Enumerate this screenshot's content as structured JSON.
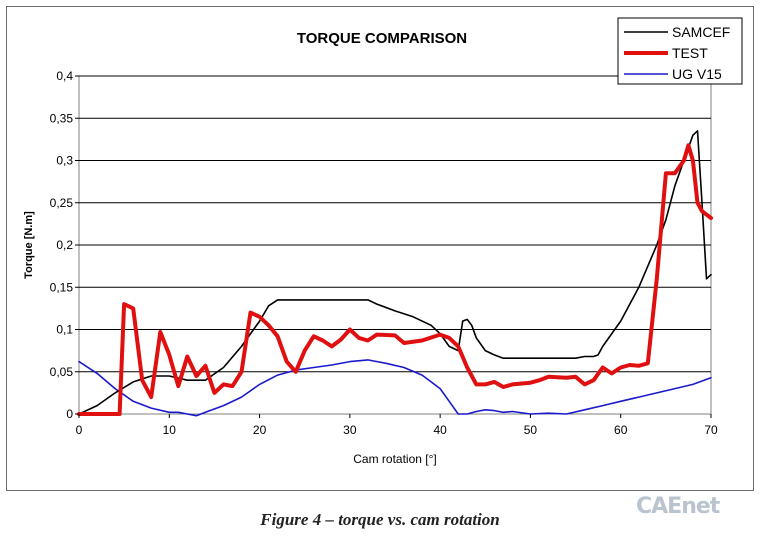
{
  "chart_data": {
    "type": "line",
    "title": "TORQUE COMPARISON",
    "xlabel": "Cam rotation [°]",
    "ylabel": "Torque [N.m]",
    "xlim": [
      0,
      70
    ],
    "ylim": [
      0,
      0.4
    ],
    "xticks": [
      0,
      10,
      20,
      30,
      40,
      50,
      60,
      70
    ],
    "xtick_labels": [
      "0",
      "10",
      "20",
      "30",
      "40",
      "50",
      "60",
      "70"
    ],
    "yticks": [
      0,
      0.05,
      0.1,
      0.15,
      0.2,
      0.25,
      0.3,
      0.35,
      0.4
    ],
    "ytick_labels": [
      "0",
      "0,05",
      "0,1",
      "0,15",
      "0,2",
      "0,25",
      "0,3",
      "0,35",
      "0,4"
    ],
    "grid": "horizontal",
    "legend_position": "top-right",
    "series": [
      {
        "name": "SAMCEF",
        "color": "#000000",
        "width": 1.6,
        "points": [
          [
            0,
            0
          ],
          [
            2,
            0.01
          ],
          [
            4,
            0.025
          ],
          [
            6,
            0.038
          ],
          [
            8,
            0.045
          ],
          [
            10,
            0.045
          ],
          [
            12,
            0.04
          ],
          [
            14,
            0.04
          ],
          [
            16,
            0.055
          ],
          [
            18,
            0.08
          ],
          [
            20,
            0.11
          ],
          [
            21,
            0.128
          ],
          [
            22,
            0.135
          ],
          [
            24,
            0.135
          ],
          [
            26,
            0.135
          ],
          [
            28,
            0.135
          ],
          [
            30,
            0.135
          ],
          [
            32,
            0.135
          ],
          [
            33,
            0.13
          ],
          [
            35,
            0.122
          ],
          [
            37,
            0.115
          ],
          [
            39,
            0.105
          ],
          [
            40,
            0.095
          ],
          [
            41,
            0.08
          ],
          [
            42,
            0.075
          ],
          [
            42.5,
            0.11
          ],
          [
            43,
            0.112
          ],
          [
            43.5,
            0.105
          ],
          [
            44,
            0.09
          ],
          [
            45,
            0.075
          ],
          [
            46,
            0.07
          ],
          [
            47,
            0.066
          ],
          [
            50,
            0.066
          ],
          [
            53,
            0.066
          ],
          [
            55,
            0.066
          ],
          [
            56,
            0.068
          ],
          [
            57,
            0.068
          ],
          [
            57.5,
            0.07
          ],
          [
            58,
            0.08
          ],
          [
            60,
            0.11
          ],
          [
            62,
            0.15
          ],
          [
            64,
            0.2
          ],
          [
            65,
            0.23
          ],
          [
            66,
            0.27
          ],
          [
            67,
            0.3
          ],
          [
            68,
            0.33
          ],
          [
            68.5,
            0.335
          ],
          [
            69,
            0.25
          ],
          [
            69.5,
            0.16
          ],
          [
            70,
            0.165
          ]
        ]
      },
      {
        "name": "TEST",
        "color": "#e01010",
        "width": 4,
        "points": [
          [
            0,
            0
          ],
          [
            4,
            0
          ],
          [
            4.5,
            0
          ],
          [
            5,
            0.13
          ],
          [
            6,
            0.125
          ],
          [
            7,
            0.04
          ],
          [
            8,
            0.02
          ],
          [
            9,
            0.097
          ],
          [
            10,
            0.07
          ],
          [
            11,
            0.033
          ],
          [
            12,
            0.068
          ],
          [
            13,
            0.045
          ],
          [
            14,
            0.057
          ],
          [
            15,
            0.025
          ],
          [
            16,
            0.035
          ],
          [
            17,
            0.033
          ],
          [
            18,
            0.05
          ],
          [
            19,
            0.12
          ],
          [
            20,
            0.115
          ],
          [
            21,
            0.105
          ],
          [
            22,
            0.092
          ],
          [
            23,
            0.062
          ],
          [
            24,
            0.05
          ],
          [
            25,
            0.075
          ],
          [
            26,
            0.092
          ],
          [
            27,
            0.087
          ],
          [
            28,
            0.08
          ],
          [
            29,
            0.088
          ],
          [
            30,
            0.1
          ],
          [
            31,
            0.09
          ],
          [
            32,
            0.087
          ],
          [
            33,
            0.094
          ],
          [
            35,
            0.093
          ],
          [
            36,
            0.084
          ],
          [
            38,
            0.087
          ],
          [
            40,
            0.094
          ],
          [
            41,
            0.09
          ],
          [
            42,
            0.08
          ],
          [
            43,
            0.055
          ],
          [
            44,
            0.035
          ],
          [
            45,
            0.035
          ],
          [
            46,
            0.038
          ],
          [
            47,
            0.032
          ],
          [
            48,
            0.035
          ],
          [
            50,
            0.037
          ],
          [
            51,
            0.04
          ],
          [
            52,
            0.044
          ],
          [
            54,
            0.043
          ],
          [
            55,
            0.044
          ],
          [
            56,
            0.035
          ],
          [
            57,
            0.04
          ],
          [
            58,
            0.055
          ],
          [
            59,
            0.048
          ],
          [
            60,
            0.055
          ],
          [
            61,
            0.058
          ],
          [
            62,
            0.057
          ],
          [
            63,
            0.06
          ],
          [
            64,
            0.16
          ],
          [
            65,
            0.285
          ],
          [
            66,
            0.285
          ],
          [
            67,
            0.3
          ],
          [
            67.5,
            0.318
          ],
          [
            68,
            0.3
          ],
          [
            68.5,
            0.25
          ],
          [
            69,
            0.24
          ],
          [
            70,
            0.232
          ]
        ]
      },
      {
        "name": "UG V15",
        "color": "#1a1acc",
        "width": 1.6,
        "points": [
          [
            0,
            0.062
          ],
          [
            2,
            0.048
          ],
          [
            4,
            0.03
          ],
          [
            6,
            0.015
          ],
          [
            8,
            0.007
          ],
          [
            10,
            0.002
          ],
          [
            11,
            0.002
          ],
          [
            12,
            0
          ],
          [
            13,
            -0.002
          ],
          [
            14,
            0.002
          ],
          [
            16,
            0.01
          ],
          [
            18,
            0.02
          ],
          [
            20,
            0.035
          ],
          [
            22,
            0.046
          ],
          [
            24,
            0.052
          ],
          [
            26,
            0.055
          ],
          [
            28,
            0.058
          ],
          [
            30,
            0.062
          ],
          [
            32,
            0.064
          ],
          [
            34,
            0.06
          ],
          [
            36,
            0.055
          ],
          [
            38,
            0.046
          ],
          [
            40,
            0.03
          ],
          [
            41,
            0.015
          ],
          [
            42,
            0
          ],
          [
            43,
            0
          ],
          [
            44,
            0.003
          ],
          [
            45,
            0.005
          ],
          [
            46,
            0.004
          ],
          [
            47,
            0.002
          ],
          [
            48,
            0.003
          ],
          [
            50,
            0
          ],
          [
            52,
            0.001
          ],
          [
            54,
            0
          ],
          [
            56,
            0.005
          ],
          [
            58,
            0.01
          ],
          [
            60,
            0.015
          ],
          [
            62,
            0.02
          ],
          [
            64,
            0.025
          ],
          [
            66,
            0.03
          ],
          [
            68,
            0.035
          ],
          [
            70,
            0.043
          ]
        ]
      }
    ]
  },
  "caption": "Figure 4 – torque vs. cam rotation",
  "watermark": "CAEnet"
}
